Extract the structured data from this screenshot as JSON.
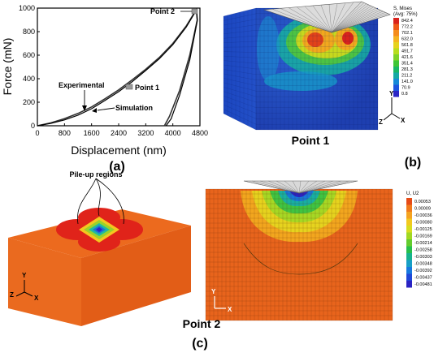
{
  "chart_data": {
    "type": "line",
    "xlabel": "Displacement (nm)",
    "ylabel": "Force (mN)",
    "xlim": [
      0,
      4800
    ],
    "ylim": [
      0,
      1000
    ],
    "x_ticks": [
      "0",
      "800",
      "1600",
      "2400",
      "3200",
      "4000",
      "4800"
    ],
    "y_ticks": [
      "0",
      "200",
      "400",
      "600",
      "800",
      "1000"
    ],
    "series": [
      {
        "name": "Experimental",
        "x": [
          0,
          400,
          800,
          1200,
          1600,
          2000,
          2400,
          2800,
          3200,
          3600,
          4000,
          4400,
          4700,
          4720,
          4500,
          4200,
          3900,
          3750
        ],
        "y": [
          0,
          25,
          60,
          105,
          160,
          230,
          305,
          390,
          480,
          580,
          700,
          850,
          990,
          900,
          600,
          300,
          80,
          0
        ]
      },
      {
        "name": "Simulation",
        "x": [
          0,
          400,
          800,
          1200,
          1600,
          2000,
          2400,
          2800,
          3200,
          3600,
          4000,
          4400,
          4700,
          4720,
          4500,
          4200,
          3950,
          3800
        ],
        "y": [
          0,
          20,
          50,
          90,
          145,
          215,
          290,
          375,
          470,
          570,
          690,
          840,
          985,
          890,
          560,
          260,
          60,
          0
        ]
      }
    ],
    "annotations": [
      "Experimental",
      "Simulation",
      "Point 1",
      "Point 2"
    ]
  },
  "panel_labels": {
    "a": "(a)",
    "b": "(b)",
    "c": "(c)"
  },
  "panel_b": {
    "title": "Point 1",
    "legend_title": [
      "S, Mises",
      "(Avg: 75%)"
    ],
    "legend_values": [
      "842.4",
      "772.2",
      "702.1",
      "632.0",
      "561.8",
      "491.7",
      "421.6",
      "351.4",
      "281.3",
      "211.2",
      "141.0",
      "70.9",
      "0.8"
    ],
    "legend_colors": [
      "#d9221c",
      "#ee5a18",
      "#f58c1b",
      "#f4b320",
      "#e6d21d",
      "#b7dd1d",
      "#7fd228",
      "#3ec635",
      "#18b765",
      "#14a9a4",
      "#1689d7",
      "#1d55de",
      "#2b26c6"
    ],
    "axes": {
      "y": "Y",
      "z": "Z",
      "x": "X"
    }
  },
  "panel_c": {
    "title": "Point 2",
    "pileup_label": "Pile-up regions",
    "legend_title": "U, U2",
    "legend_values": [
      "0.00053",
      "0.00009",
      "-0.00036",
      "-0.00080",
      "-0.00125",
      "-0.00169",
      "-0.00214",
      "-0.00258",
      "-0.00303",
      "-0.00348",
      "-0.00392",
      "-0.00437",
      "-0.00481"
    ],
    "legend_colors": [
      "#e64b17",
      "#f17a1b",
      "#f5a320",
      "#f2c91f",
      "#d7dd1f",
      "#a1d822",
      "#63cc2e",
      "#27bf4c",
      "#17b38c",
      "#179fc6",
      "#1779df",
      "#1f48d8",
      "#2a23c3"
    ],
    "axes_left": {
      "y": "Y",
      "z": "Z",
      "x": "X"
    },
    "axes_right": {
      "y": "Y",
      "x": "X"
    }
  }
}
